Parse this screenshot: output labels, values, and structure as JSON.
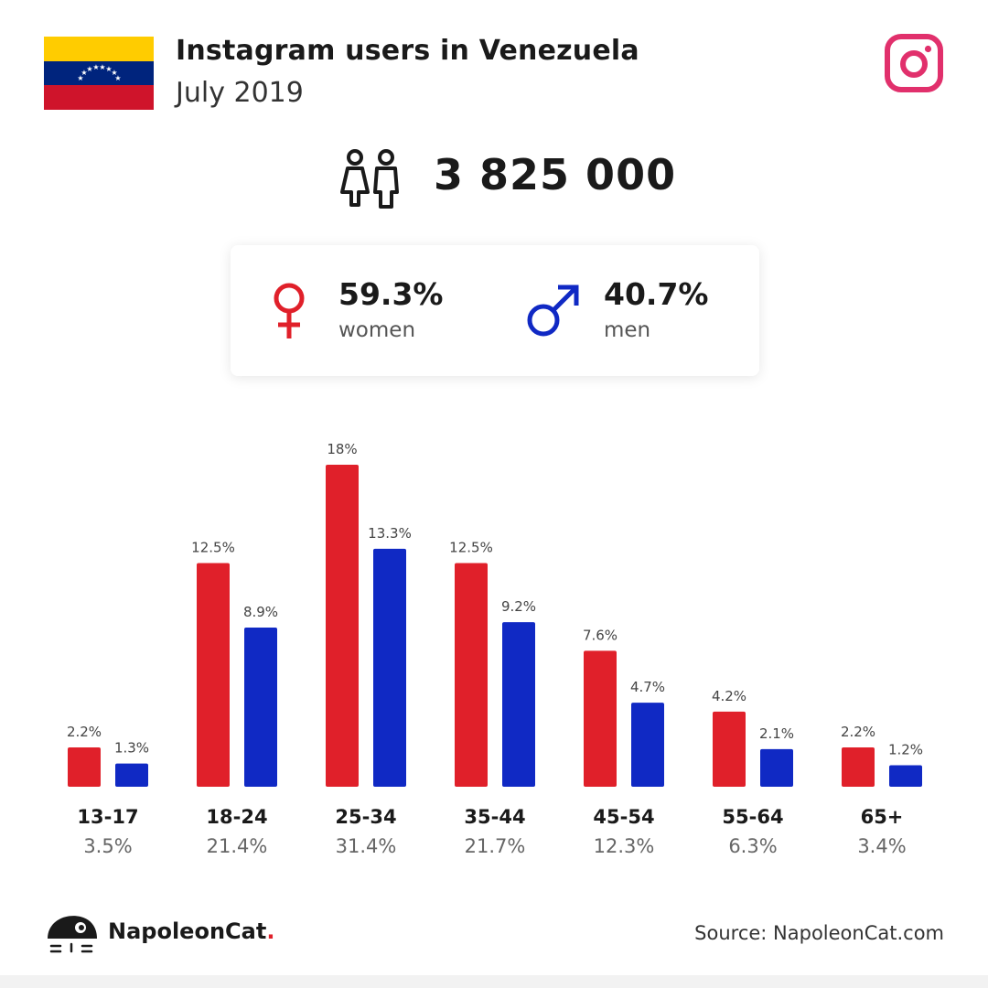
{
  "header": {
    "title": "Instagram users in Venezuela",
    "subtitle": "July 2019",
    "flag_colors": [
      "#ffcc00",
      "#00247d",
      "#cf142b"
    ],
    "brand_icon": "instagram-icon"
  },
  "summary": {
    "total_users": "3 825 000",
    "icon": "users-icon"
  },
  "gender": {
    "women": {
      "pct": "59.3%",
      "label": "women",
      "color": "#e0202a",
      "icon": "female-icon"
    },
    "men": {
      "pct": "40.7%",
      "label": "men",
      "color": "#1029c4",
      "icon": "male-icon"
    }
  },
  "chart_data": {
    "type": "bar",
    "categories": [
      "13-17",
      "18-24",
      "25-34",
      "35-44",
      "45-54",
      "55-64",
      "65+"
    ],
    "series": [
      {
        "values": [
          2.2,
          12.5,
          18,
          12.5,
          7.6,
          4.2,
          2.2
        ],
        "labels": [
          "2.2%",
          "12.5%",
          "18%",
          "12.5%",
          "7.6%",
          "4.2%",
          "2.2%"
        ],
        "color": "#e0202a"
      },
      {
        "values": [
          1.3,
          8.9,
          13.3,
          9.2,
          4.7,
          2.1,
          1.2
        ],
        "labels": [
          "1.3%",
          "8.9%",
          "13.3%",
          "9.2%",
          "4.7%",
          "2.1%",
          "1.2%"
        ],
        "color": "#1029c4"
      }
    ],
    "totals": [
      "3.5%",
      "21.4%",
      "31.4%",
      "21.7%",
      "12.3%",
      "6.3%",
      "3.4%"
    ],
    "ylim": [
      0,
      18
    ],
    "grid": false
  },
  "footer": {
    "brand_name": "NapoleonCat",
    "brand_dot": ".",
    "source": "Source: NapoleonCat.com"
  }
}
